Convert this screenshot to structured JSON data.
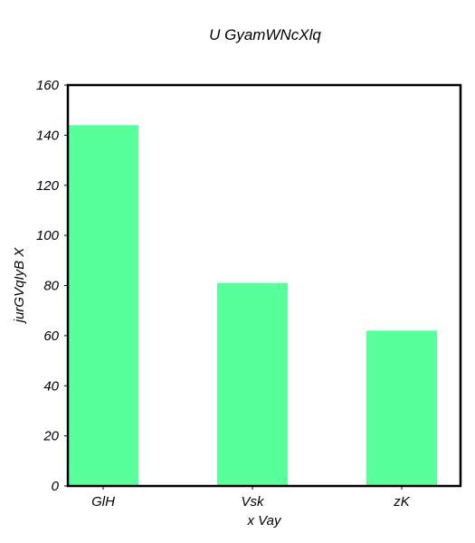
{
  "chart_data": {
    "type": "bar",
    "title": "U GyamWNcXlq",
    "xlabel": "x Vay",
    "ylabel": "jurGVqIyB X",
    "categories": [
      "GlH",
      "Vsk",
      "zK"
    ],
    "values": [
      144,
      81,
      62
    ],
    "ylim": [
      0,
      160
    ],
    "yticks": [
      "0",
      "20",
      "40",
      "60",
      "80",
      "100",
      "120",
      "140",
      "160"
    ],
    "grid": false,
    "bar_color": "#59ff9a",
    "axis_color": "#000000"
  }
}
